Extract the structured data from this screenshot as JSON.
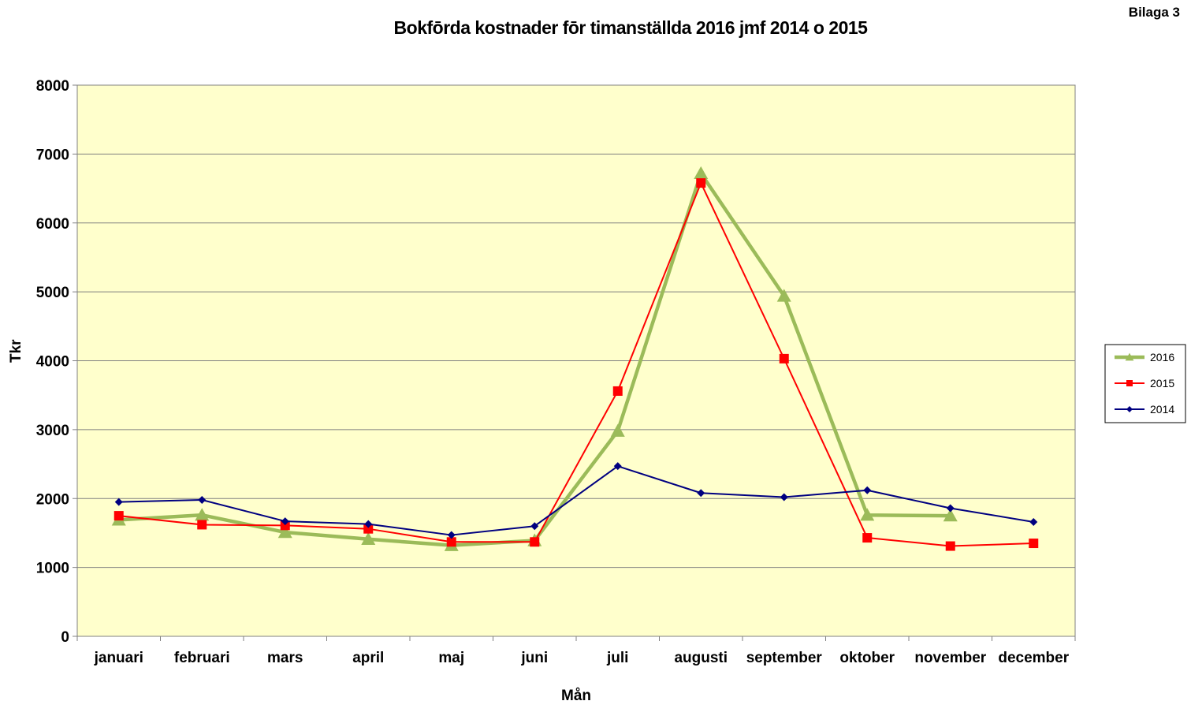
{
  "corner_label": "Bilaga 3",
  "chart_data": {
    "type": "line",
    "title": "Bokfōrda kostnader fōr timanställda 2016 jmf 2014 o 2015",
    "xlabel": "Mån",
    "ylabel": "Tkr",
    "ylim": [
      0,
      8000
    ],
    "yticks": [
      0,
      1000,
      2000,
      3000,
      4000,
      5000,
      6000,
      7000,
      8000
    ],
    "grid": true,
    "legend_position": "right",
    "plot_background": "#ffffcc",
    "categories": [
      "januari",
      "februari",
      "mars",
      "april",
      "maj",
      "juni",
      "juli",
      "augusti",
      "september",
      "oktober",
      "november",
      "december"
    ],
    "series": [
      {
        "name": "2016",
        "color": "#9bbb59",
        "marker": "triangle",
        "values": [
          1690,
          1760,
          1510,
          1410,
          1320,
          1390,
          2980,
          6720,
          4940,
          1760,
          1750,
          null
        ]
      },
      {
        "name": "2015",
        "color": "#ff0000",
        "marker": "square",
        "values": [
          1750,
          1620,
          1610,
          1560,
          1370,
          1370,
          3560,
          6580,
          4030,
          1430,
          1310,
          1350
        ]
      },
      {
        "name": "2014",
        "color": "#000080",
        "marker": "diamond",
        "values": [
          1950,
          1980,
          1670,
          1630,
          1470,
          1600,
          2470,
          2080,
          2020,
          2120,
          1860,
          1660
        ]
      }
    ]
  }
}
